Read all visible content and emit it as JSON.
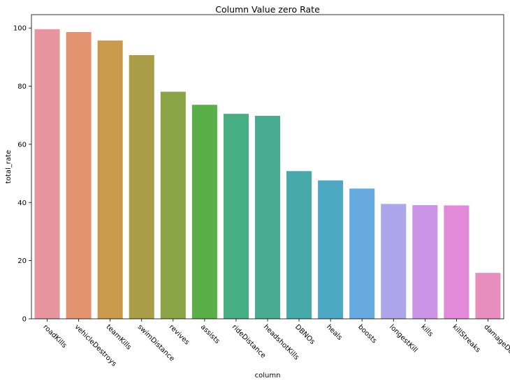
{
  "chart_data": {
    "type": "bar",
    "title": "Column Value zero Rate",
    "xlabel": "column",
    "ylabel": "total_rate",
    "categories": [
      "roadKills",
      "vehicleDestroys",
      "teamKills",
      "swimDistance",
      "revives",
      "assists",
      "rideDistance",
      "headshotKills",
      "DBNOs",
      "heals",
      "boosts",
      "longestKill",
      "kills",
      "killStreaks",
      "damageDealt"
    ],
    "values": [
      99.6,
      98.6,
      95.7,
      90.7,
      78.1,
      73.6,
      70.5,
      69.8,
      50.8,
      47.6,
      44.8,
      39.5,
      39.1,
      39.0,
      15.8
    ],
    "colors": [
      "#e8949e",
      "#e49370",
      "#c99a4b",
      "#a99e47",
      "#8aa445",
      "#5aae47",
      "#47ad82",
      "#48aa90",
      "#48a9ab",
      "#4ca8c3",
      "#66aade",
      "#aea6ea",
      "#cb94e6",
      "#e28ad9",
      "#e88ebe"
    ],
    "yticks": [
      0,
      20,
      40,
      60,
      80,
      100
    ],
    "ylim": [
      0,
      104.6
    ],
    "grid": false
  }
}
